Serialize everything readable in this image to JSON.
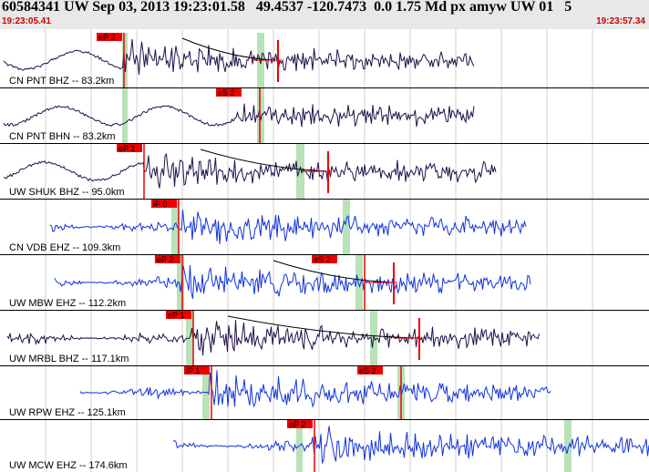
{
  "header": {
    "title": "60584341 UW Sep 03, 2013 19:23:01.58   49.4537 -120.7473  0.0 1.75 Md px amyw UW 01   5",
    "start_time": "19:23:05.41",
    "end_time": "19:23:57.34"
  },
  "colors": {
    "header_bg": "#e8e8e8",
    "time_text": "#cc0000",
    "trace_dark": "#20104a",
    "trace_blue": "#1133dd",
    "pick": "#ee0000",
    "window": "#b8e2b8"
  },
  "channels": [
    {
      "label": "CN PNT BHZ -- 83.2km",
      "color": "dark",
      "pick_p": "eP 2",
      "pick_s": "",
      "s_label_pos": "",
      "decay": true,
      "mark": true
    },
    {
      "label": "CN PNT BHN -- 83.2km",
      "color": "dark",
      "pick_p": "",
      "pick_s": "eS 2",
      "s_label_pos": "",
      "decay": false,
      "mark": false
    },
    {
      "label": "UW SHUK BHZ -- 95.0km",
      "color": "dark",
      "pick_p": "eP 1",
      "pick_s": "",
      "s_label_pos": "",
      "decay": true,
      "mark": true
    },
    {
      "label": "CN VDB EHZ -- 109.3km",
      "color": "blue",
      "pick_p": "iP 0",
      "pick_s": "",
      "s_label_pos": "",
      "decay": false,
      "mark": false
    },
    {
      "label": "UW MBW EHZ -- 112.2km",
      "color": "blue",
      "pick_p": "eP 2",
      "pick_s": "eS 2",
      "s_label_pos": "top",
      "decay": true,
      "mark": true
    },
    {
      "label": "UW MRBL BHZ -- 117.1km",
      "color": "dark",
      "pick_p": "eP 1",
      "pick_s": "",
      "s_label_pos": "",
      "decay": true,
      "mark": true
    },
    {
      "label": "UW RPW EHZ -- 125.1km",
      "color": "blue",
      "pick_p": "iP 1",
      "pick_s": "eS 2",
      "s_label_pos": "top",
      "decay": false,
      "mark": false
    },
    {
      "label": "UW MCW EHZ -- 174.6km",
      "color": "blue",
      "pick_p": "eP 2",
      "pick_s": "",
      "s_label_pos": "",
      "decay": false,
      "mark": false
    }
  ]
}
